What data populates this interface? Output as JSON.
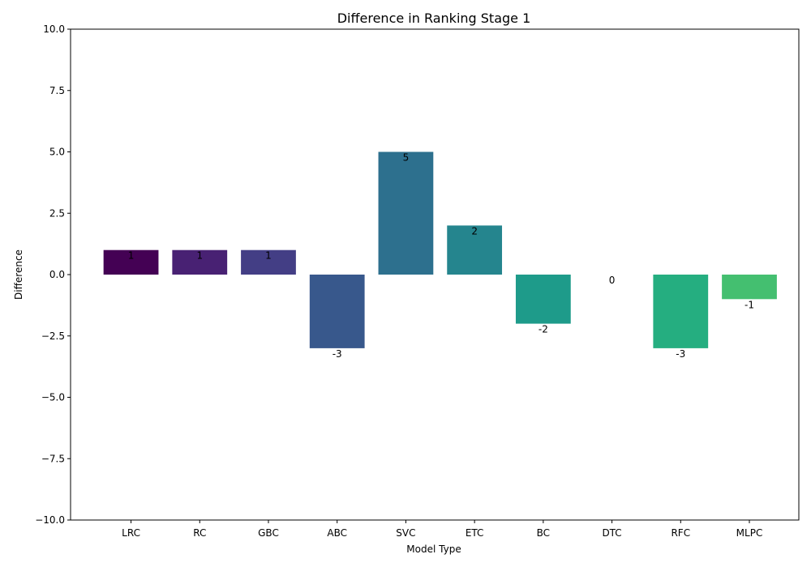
{
  "chart_data": {
    "type": "bar",
    "title": "Difference in Ranking  Stage 1",
    "xlabel": "Model Type",
    "ylabel": "Difference",
    "ylim": [
      -10,
      10
    ],
    "yticks": [
      -10.0,
      -7.5,
      -5.0,
      -2.5,
      0.0,
      2.5,
      5.0,
      7.5,
      10.0
    ],
    "ytick_labels": [
      "−10.0",
      "−7.5",
      "−5.0",
      "−2.5",
      "0.0",
      "2.5",
      "5.0",
      "7.5",
      "10.0"
    ],
    "categories": [
      "LRC",
      "RC",
      "GBC",
      "ABC",
      "SVC",
      "ETC",
      "BC",
      "DTC",
      "RFC",
      "MLPC"
    ],
    "values": [
      1,
      1,
      1,
      -3,
      5,
      2,
      -2,
      0,
      -3,
      -1
    ],
    "data_labels": [
      "1",
      "1",
      "1",
      "-3",
      "5",
      "2",
      "-2",
      "0",
      "-3",
      "-1"
    ],
    "colors": [
      "#440154",
      "#482173",
      "#433e85",
      "#38588c",
      "#2d708e",
      "#25858e",
      "#1e9b8a",
      "#2ab07f",
      "#25ae80",
      "#44bf70"
    ],
    "grid": false,
    "legend": "none"
  }
}
